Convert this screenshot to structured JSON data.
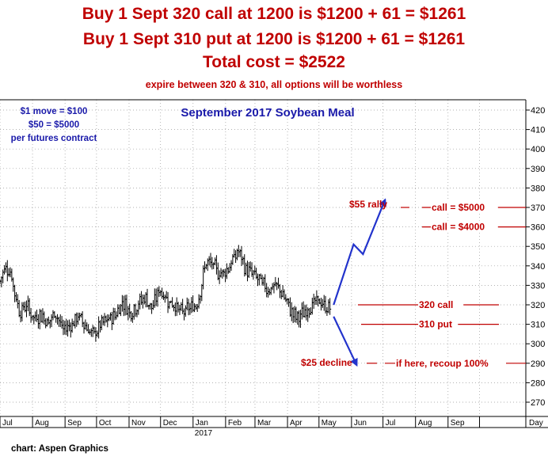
{
  "header": {
    "line1": "Buy 1 Sept 320 call at 1200 is $1200 + 61 = $1261",
    "line2": "Buy 1 Sept 310 put at 1200 is $1200 + 61 = $1261",
    "line3": "Total cost = $2522",
    "line4": "expire between 320 & 310, all options will be worthless"
  },
  "chart_data": {
    "type": "bar",
    "style": "ohlc",
    "title": "September 2017 Soybean Meal",
    "info_lines": [
      "$1 move = $100",
      "$50 = $5000",
      "per futures contract"
    ],
    "x_labels": [
      "Jul",
      "Aug",
      "Sep",
      "Oct",
      "Nov",
      "Dec",
      "Jan",
      "Feb",
      "Mar",
      "Apr",
      "May",
      "Jun",
      "Jul",
      "Aug",
      "Sep",
      "Day"
    ],
    "year_label": "2017",
    "yticks": [
      270,
      280,
      290,
      300,
      310,
      320,
      330,
      340,
      350,
      360,
      370,
      380,
      390,
      400,
      410,
      420
    ],
    "ylim": [
      263,
      424
    ],
    "grid": true,
    "price_path": [
      {
        "date": "2016-07-01",
        "price": 332
      },
      {
        "date": "2016-07-06",
        "price": 340
      },
      {
        "date": "2016-07-11",
        "price": 337
      },
      {
        "date": "2016-07-15",
        "price": 326
      },
      {
        "date": "2016-07-20",
        "price": 316
      },
      {
        "date": "2016-07-26",
        "price": 320
      },
      {
        "date": "2016-08-02",
        "price": 313
      },
      {
        "date": "2016-08-09",
        "price": 315
      },
      {
        "date": "2016-08-16",
        "price": 311
      },
      {
        "date": "2016-08-23",
        "price": 316
      },
      {
        "date": "2016-08-30",
        "price": 307
      },
      {
        "date": "2016-09-07",
        "price": 310
      },
      {
        "date": "2016-09-14",
        "price": 314
      },
      {
        "date": "2016-09-21",
        "price": 309
      },
      {
        "date": "2016-09-28",
        "price": 304
      },
      {
        "date": "2016-10-05",
        "price": 310
      },
      {
        "date": "2016-10-12",
        "price": 312
      },
      {
        "date": "2016-10-19",
        "price": 315
      },
      {
        "date": "2016-10-26",
        "price": 322
      },
      {
        "date": "2016-11-02",
        "price": 316
      },
      {
        "date": "2016-11-09",
        "price": 320
      },
      {
        "date": "2016-11-16",
        "price": 324
      },
      {
        "date": "2016-11-23",
        "price": 318
      },
      {
        "date": "2016-11-30",
        "price": 328
      },
      {
        "date": "2016-12-07",
        "price": 323
      },
      {
        "date": "2016-12-14",
        "price": 320
      },
      {
        "date": "2016-12-21",
        "price": 316
      },
      {
        "date": "2016-12-28",
        "price": 318
      },
      {
        "date": "2017-01-04",
        "price": 320
      },
      {
        "date": "2017-01-09",
        "price": 330
      },
      {
        "date": "2017-01-13",
        "price": 342
      },
      {
        "date": "2017-01-20",
        "price": 340
      },
      {
        "date": "2017-01-26",
        "price": 336
      },
      {
        "date": "2017-02-02",
        "price": 338
      },
      {
        "date": "2017-02-08",
        "price": 343
      },
      {
        "date": "2017-02-13",
        "price": 348
      },
      {
        "date": "2017-02-20",
        "price": 338
      },
      {
        "date": "2017-02-27",
        "price": 336
      },
      {
        "date": "2017-03-06",
        "price": 332
      },
      {
        "date": "2017-03-13",
        "price": 328
      },
      {
        "date": "2017-03-20",
        "price": 330
      },
      {
        "date": "2017-03-27",
        "price": 326
      },
      {
        "date": "2017-04-03",
        "price": 318
      },
      {
        "date": "2017-04-10",
        "price": 313
      },
      {
        "date": "2017-04-17",
        "price": 316
      },
      {
        "date": "2017-04-24",
        "price": 320
      },
      {
        "date": "2017-05-01",
        "price": 322
      },
      {
        "date": "2017-05-08",
        "price": 318
      },
      {
        "date": "2017-05-12",
        "price": 320
      }
    ],
    "projections": [
      {
        "name": "rally",
        "points": [
          {
            "date": "2017-05-15",
            "price": 320
          },
          {
            "date": "2017-06-03",
            "price": 351
          },
          {
            "date": "2017-06-12",
            "price": 346
          },
          {
            "date": "2017-07-03",
            "price": 374
          }
        ]
      },
      {
        "name": "decline",
        "points": [
          {
            "date": "2017-05-15",
            "price": 314
          },
          {
            "date": "2017-06-06",
            "price": 289
          }
        ]
      }
    ],
    "levels": [
      {
        "price": 370,
        "label": "call = $5000"
      },
      {
        "price": 360,
        "label": "call = $4000"
      },
      {
        "price": 320,
        "label": "320 call"
      },
      {
        "price": 310,
        "label": "310 put"
      },
      {
        "price": 290,
        "label": "if here, recoup 100%"
      }
    ],
    "annotations": [
      "$55 rally",
      "$25 decline"
    ],
    "colors": {
      "price": "#000000",
      "projection": "#2233cc",
      "levels": "#c00000",
      "title": "#1a1aaa",
      "info": "#1a1aaa",
      "grid": "#999999"
    }
  },
  "footer": {
    "credit": "chart: Aspen Graphics"
  }
}
